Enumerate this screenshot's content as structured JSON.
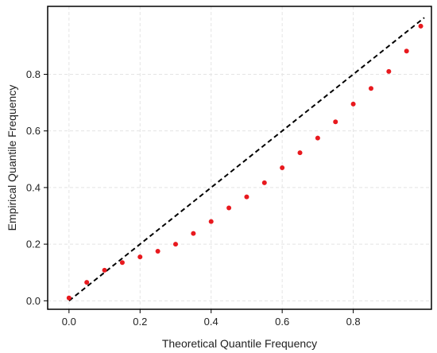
{
  "chart_data": {
    "type": "scatter",
    "title": "",
    "xlabel": "Theoretical Quantile Frequency",
    "ylabel": "Empirical Quantile Frequency",
    "xlim": [
      -0.06,
      1.02
    ],
    "ylim": [
      -0.03,
      1.04
    ],
    "xticks": [
      0.0,
      0.2,
      0.4,
      0.6,
      0.8
    ],
    "yticks": [
      0.0,
      0.2,
      0.4,
      0.6,
      0.8
    ],
    "xtick_labels": [
      "0.0",
      "0.2",
      "0.4",
      "0.6",
      "0.8"
    ],
    "ytick_labels": [
      "0.0",
      "0.2",
      "0.4",
      "0.6",
      "0.8"
    ],
    "grid": true,
    "legend": "none",
    "series": [
      {
        "kind": "scatter",
        "color": "#e8191e",
        "x": [
          0.0,
          0.05,
          0.1,
          0.15,
          0.2,
          0.25,
          0.3,
          0.35,
          0.4,
          0.45,
          0.5,
          0.55,
          0.6,
          0.65,
          0.7,
          0.75,
          0.8,
          0.85,
          0.9,
          0.95,
          0.99
        ],
        "y": [
          0.01,
          0.065,
          0.108,
          0.135,
          0.155,
          0.175,
          0.2,
          0.238,
          0.28,
          0.328,
          0.367,
          0.417,
          0.47,
          0.523,
          0.575,
          0.632,
          0.695,
          0.75,
          0.81,
          0.882,
          0.97
        ]
      },
      {
        "kind": "reference-line",
        "color": "#000000",
        "dash": "dashed",
        "x": [
          0.0,
          1.0
        ],
        "y": [
          0.0,
          1.0
        ]
      }
    ]
  }
}
